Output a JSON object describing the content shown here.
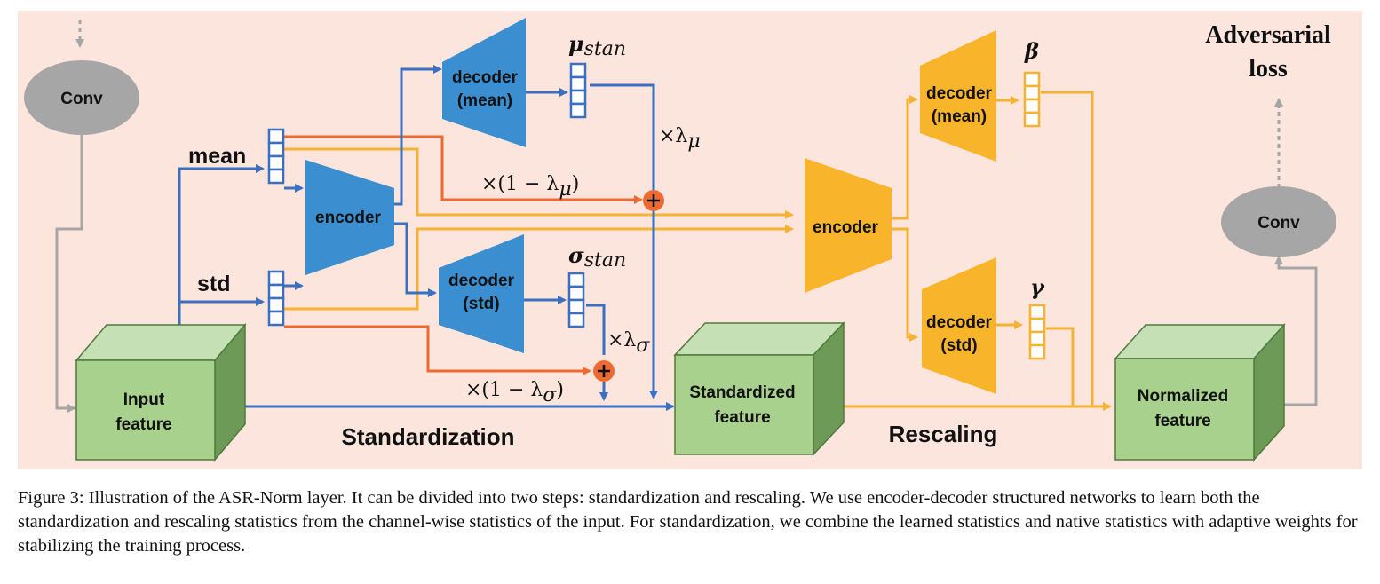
{
  "labels": {
    "conv_top": "Conv",
    "conv_right": "Conv",
    "mean": "mean",
    "std": "std",
    "encoder_blue": "encoder",
    "decoder_mean_blue_1": "decoder",
    "decoder_mean_blue_2": "(mean)",
    "decoder_std_blue_1": "decoder",
    "decoder_std_blue_2": "(std)",
    "encoder_orange": "encoder",
    "decoder_mean_orange_1": "decoder",
    "decoder_mean_orange_2": "(mean)",
    "decoder_std_orange_1": "decoder",
    "decoder_std_orange_2": "(std)",
    "input_feature_1": "Input",
    "input_feature_2": "feature",
    "standardized_feature_1": "Standardized",
    "standardized_feature_2": "feature",
    "normalized_feature_1": "Normalized",
    "normalized_feature_2": "feature",
    "standardization": "Standardization",
    "rescaling": "Rescaling",
    "adversarial_1": "Adversarial",
    "adversarial_2": "loss",
    "mu_stan": "μ",
    "mu_stan_sub": "stan",
    "sigma_stan": "σ",
    "sigma_stan_sub": "stan",
    "beta": "β",
    "gamma": "γ",
    "times_lambda_mu": "×λ",
    "times_lambda_mu_sub": "μ",
    "times_lambda_sigma": "×λ",
    "times_lambda_sigma_sub": "σ",
    "one_minus_lambda_mu": "×(1 − λ",
    "one_minus_lambda_mu_sub": "μ",
    "one_minus_lambda_mu_close": ")",
    "one_minus_lambda_sigma": "×(1 − λ",
    "one_minus_lambda_sigma_sub": "σ",
    "one_minus_lambda_sigma_close": ")"
  },
  "caption": "Figure 3: Illustration of the ASR-Norm layer. It can be divided into two steps: standardization and rescaling. We use encoder-decoder structured networks to learn both the standardization and rescaling statistics from the channel-wise statistics of the input. For standardization, we combine the learned statistics and native statistics with adaptive weights for stabilizing the training process.",
  "colors": {
    "background": "#fce5dc",
    "blue": "#3b6fc0",
    "blue_fill": "#3b8fd0",
    "orange_line": "#f5b333",
    "orange_fill": "#f8b42a",
    "red_line": "#ed6b32",
    "green_front": "#a9d18e",
    "green_side": "#6e9a58",
    "green_top": "#c5e0b4",
    "grey": "#a6a6a6"
  }
}
